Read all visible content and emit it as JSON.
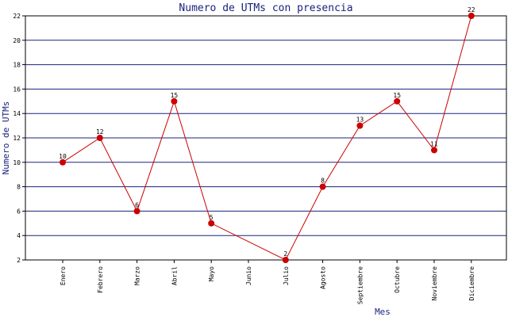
{
  "chart_data": {
    "type": "line",
    "title": "Numero de UTMs con presencia",
    "xlabel": "Mes",
    "ylabel": "Numero de UTMs",
    "categories": [
      "Enero",
      "Febrero",
      "Marzo",
      "Abril",
      "Mayo",
      "Junio",
      "Julio",
      "Agosto",
      "Septiembre",
      "Octubre",
      "Noviembre",
      "Diciembre"
    ],
    "values": [
      10,
      12,
      6,
      15,
      5,
      null,
      2,
      8,
      13,
      15,
      11,
      22
    ],
    "ylim": [
      2,
      22
    ],
    "yticks": [
      2,
      4,
      6,
      8,
      10,
      12,
      14,
      16,
      18,
      20,
      22
    ],
    "grid": true,
    "colors": {
      "line": "#cc0000",
      "marker": "#cc0000",
      "grid": "#1a237e",
      "title": "#1a237e"
    }
  }
}
